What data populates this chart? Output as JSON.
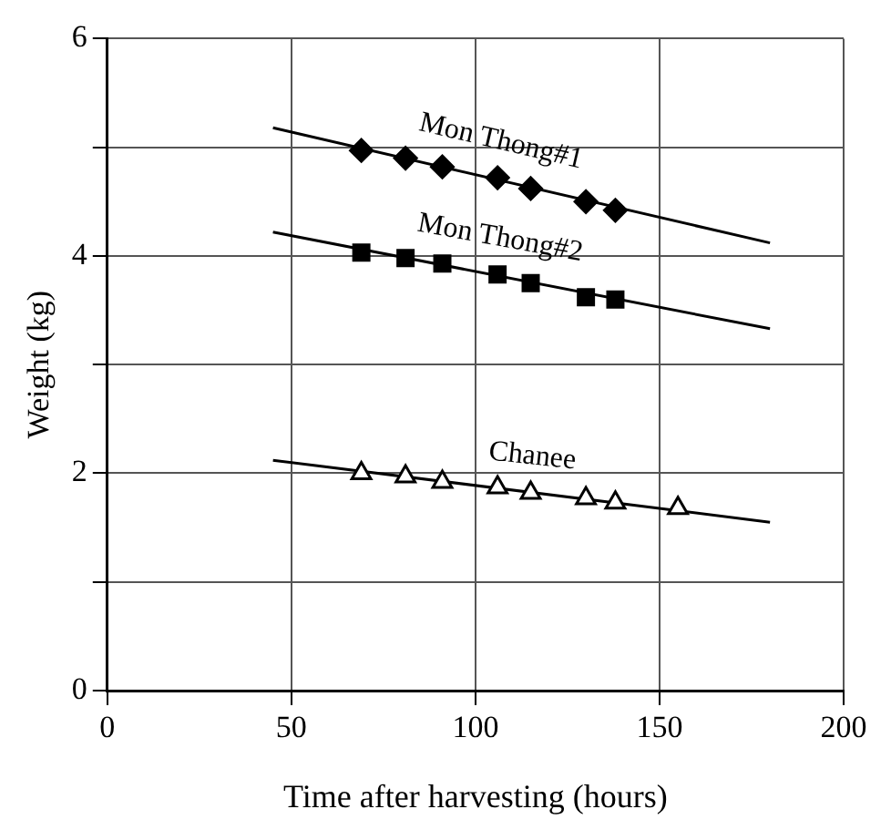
{
  "chart_data": {
    "type": "scatter",
    "xlabel": "Time after harvesting (hours)",
    "ylabel": "Weight (kg)",
    "xlim": [
      0,
      200
    ],
    "xticks": [
      0,
      50,
      100,
      150,
      200
    ],
    "ylim": [
      0,
      6
    ],
    "yticks": [
      0,
      {
        "value": 1,
        "label": null
      },
      2,
      {
        "value": 3,
        "label": null
      },
      4,
      {
        "value": 5,
        "label": null
      },
      6
    ],
    "grid": true,
    "legend": false,
    "series": [
      {
        "name": "Mon Thong#1",
        "type": "scatter",
        "color": "#000000",
        "marker": "diamond",
        "x": [
          69,
          81,
          91,
          106,
          115,
          130,
          138
        ],
        "values": [
          4.97,
          4.9,
          4.82,
          4.72,
          4.62,
          4.5,
          4.42
        ]
      },
      {
        "name": "Mon Thong#2",
        "type": "scatter",
        "color": "#000000",
        "marker": "square",
        "x": [
          69,
          81,
          91,
          106,
          115,
          130,
          138
        ],
        "values": [
          4.03,
          3.98,
          3.93,
          3.83,
          3.75,
          3.62,
          3.6
        ]
      },
      {
        "name": "Chanee",
        "type": "scatter",
        "color": "#000000",
        "marker": "triangle",
        "x": [
          69,
          81,
          91,
          106,
          115,
          130,
          138,
          155
        ],
        "values": [
          2.0,
          1.97,
          1.92,
          1.87,
          1.82,
          1.77,
          1.73,
          1.68
        ]
      },
      {
        "type": "line",
        "color": "#000000",
        "marker": "none",
        "x": [
          45,
          180
        ],
        "values": [
          5.18,
          4.12
        ]
      },
      {
        "type": "line",
        "color": "#000000",
        "marker": "none",
        "x": [
          45,
          180
        ],
        "values": [
          4.22,
          3.33
        ]
      },
      {
        "type": "line",
        "color": "#000000",
        "marker": "none",
        "x": [
          45,
          180
        ],
        "values": [
          2.12,
          1.55
        ]
      }
    ]
  }
}
